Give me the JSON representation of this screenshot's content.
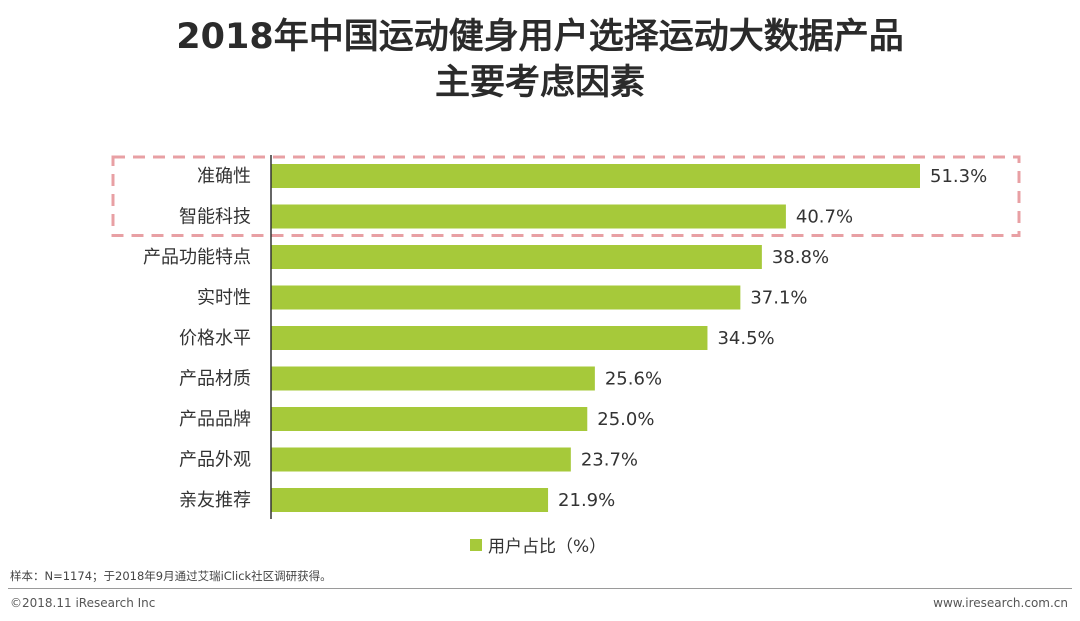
{
  "title": {
    "line1": "2018年中国运动健身用户选择运动大数据产品",
    "line2": "主要考虑因素"
  },
  "chart_data": {
    "type": "bar",
    "orientation": "horizontal",
    "categories": [
      "准确性",
      "智能科技",
      "产品功能特点",
      "实时性",
      "价格水平",
      "产品材质",
      "产品品牌",
      "产品外观",
      "亲友推荐"
    ],
    "series": [
      {
        "name": "用户占比（%）",
        "values": [
          51.3,
          40.7,
          38.8,
          37.1,
          34.5,
          25.6,
          25.0,
          23.7,
          21.9
        ],
        "labels": [
          "51.3%",
          "40.7%",
          "38.8%",
          "37.1%",
          "34.5%",
          "25.6%",
          "25.0%",
          "23.7%",
          "21.9%"
        ]
      }
    ],
    "xlim": [
      0,
      51.3
    ],
    "grid": false,
    "legend_position": "bottom",
    "highlighted_categories": [
      "准确性",
      "智能科技"
    ],
    "colors": {
      "bar": "#a6c93a",
      "highlight_box": "#e8a0a4",
      "axis": "#333333"
    }
  },
  "legend": {
    "label": "用户占比（%）"
  },
  "note": "样本：N=1174；于2018年9月通过艾瑞iClick社区调研获得。",
  "footer": {
    "copyright": "©2018.11 iResearch Inc",
    "website": "www.iresearch.com.cn"
  }
}
